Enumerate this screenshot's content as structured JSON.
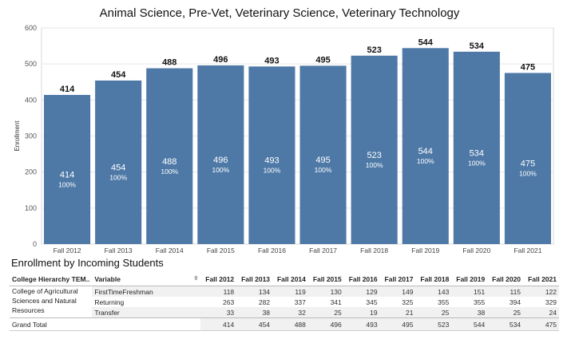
{
  "chart": {
    "title": "Animal Science, Pre-Vet, Veterinary Science, Veterinary Technology"
  },
  "chart_data": {
    "type": "bar",
    "title": "Animal Science, Pre-Vet, Veterinary Science, Veterinary Technology",
    "ylabel": "Enrollment",
    "xlabel": "",
    "ylim": [
      0,
      600
    ],
    "yticks": [
      0,
      100,
      200,
      300,
      400,
      500,
      600
    ],
    "categories": [
      "Fall 2012",
      "Fall 2013",
      "Fall 2014",
      "Fall 2015",
      "Fall 2016",
      "Fall 2017",
      "Fall 2018",
      "Fall 2019",
      "Fall 2020",
      "Fall 2021"
    ],
    "values": [
      414,
      454,
      488,
      496,
      493,
      495,
      523,
      544,
      534,
      475
    ],
    "percent_labels": [
      "100%",
      "100%",
      "100%",
      "100%",
      "100%",
      "100%",
      "100%",
      "100%",
      "100%",
      "100%"
    ],
    "bar_color": "#4e79a7",
    "grid": true
  },
  "table": {
    "title": "Enrollment by Incoming Students",
    "col_group_header": "College Hierarchy TEM..",
    "col_var_header": "Variable",
    "sort_icon": "⇳",
    "years": [
      "Fall 2012",
      "Fall 2013",
      "Fall 2014",
      "Fall 2015",
      "Fall 2016",
      "Fall 2017",
      "Fall 2018",
      "Fall 2019",
      "Fall 2020",
      "Fall 2021"
    ],
    "group_label": "College of Agricultural Sciences and Natural Resources",
    "rows": [
      {
        "variable": "FirstTimeFreshman",
        "values": [
          "118",
          "134",
          "119",
          "130",
          "129",
          "149",
          "143",
          "151",
          "115",
          "122"
        ]
      },
      {
        "variable": "Returning",
        "values": [
          "263",
          "282",
          "337",
          "341",
          "345",
          "325",
          "355",
          "355",
          "394",
          "329"
        ]
      },
      {
        "variable": "Transfer",
        "values": [
          "33",
          "38",
          "32",
          "25",
          "19",
          "21",
          "25",
          "38",
          "25",
          "24"
        ]
      }
    ],
    "total_label": "Grand Total",
    "totals": [
      "414",
      "454",
      "488",
      "496",
      "493",
      "495",
      "523",
      "544",
      "534",
      "475"
    ]
  }
}
